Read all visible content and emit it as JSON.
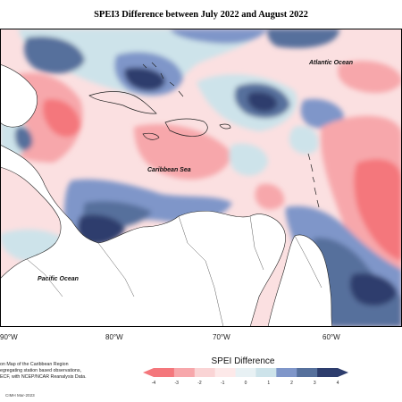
{
  "title": "SPEI3 Difference between July 2022 and August 2022",
  "map": {
    "labels": {
      "atlantic": "Atlantic Ocean",
      "caribbean": "Caribbean Sea",
      "pacific": "Pacific Ocean"
    },
    "longitudes": [
      "90°W",
      "80°W",
      "70°W",
      "60°W"
    ]
  },
  "notes": {
    "line1": "on Map of the Caribbean Region",
    "line2": "egregating station based observations,",
    "line3": "ECF, with NCEP/NCAR Reanalysis Data."
  },
  "credit": "CIMH Mar-2023",
  "legend": {
    "title": "SPEI Difference",
    "ticks": [
      "-4",
      "-3",
      "-2",
      "-1",
      "0",
      "1",
      "2",
      "3",
      "4"
    ],
    "colors": [
      "#f4777c",
      "#f7a7ab",
      "#fad4d5",
      "#fde9e9",
      "#e8f1f4",
      "#cde3ea",
      "#7f96c9",
      "#56709c",
      "#2d3d6d"
    ]
  }
}
